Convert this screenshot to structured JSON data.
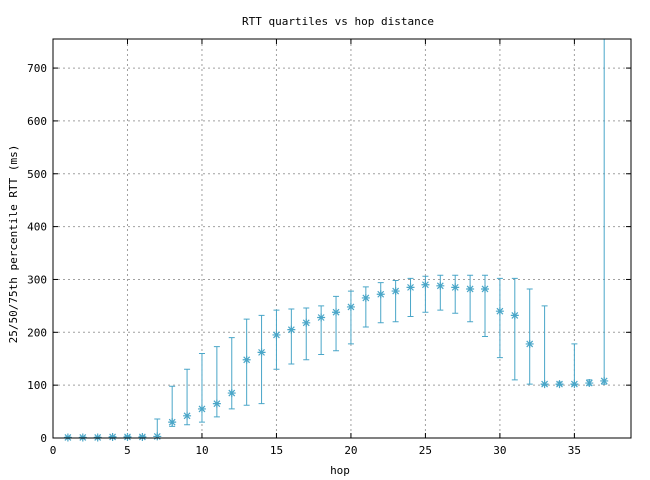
{
  "chart_data": {
    "type": "scatter",
    "title": "RTT quartiles vs hop distance",
    "xlabel": "hop",
    "ylabel": "25/50/75th percentile RTT (ms)",
    "xlim": [
      0,
      38.8
    ],
    "ylim": [
      0,
      755
    ],
    "xticks": [
      0,
      5,
      10,
      15,
      20,
      25,
      30,
      35
    ],
    "yticks": [
      0,
      100,
      200,
      300,
      400,
      500,
      600,
      700
    ],
    "grid": true,
    "colors": {
      "series": "#4aa6c8"
    },
    "points": [
      {
        "x": 1,
        "q25": 0,
        "median": 1,
        "q75": 2
      },
      {
        "x": 2,
        "q25": 0,
        "median": 1,
        "q75": 2
      },
      {
        "x": 3,
        "q25": 0,
        "median": 1,
        "q75": 2
      },
      {
        "x": 4,
        "q25": 0,
        "median": 2,
        "q75": 3
      },
      {
        "x": 5,
        "q25": 0,
        "median": 2,
        "q75": 4
      },
      {
        "x": 6,
        "q25": 0,
        "median": 2,
        "q75": 4
      },
      {
        "x": 7,
        "q25": 0,
        "median": 3,
        "q75": 36
      },
      {
        "x": 8,
        "q25": 22,
        "median": 30,
        "q75": 98
      },
      {
        "x": 9,
        "q25": 25,
        "median": 42,
        "q75": 130
      },
      {
        "x": 10,
        "q25": 30,
        "median": 55,
        "q75": 160
      },
      {
        "x": 11,
        "q25": 40,
        "median": 65,
        "q75": 173
      },
      {
        "x": 12,
        "q25": 55,
        "median": 85,
        "q75": 190
      },
      {
        "x": 13,
        "q25": 62,
        "median": 148,
        "q75": 225
      },
      {
        "x": 14,
        "q25": 65,
        "median": 162,
        "q75": 232
      },
      {
        "x": 15,
        "q25": 130,
        "median": 195,
        "q75": 242
      },
      {
        "x": 16,
        "q25": 140,
        "median": 205,
        "q75": 244
      },
      {
        "x": 17,
        "q25": 148,
        "median": 218,
        "q75": 246
      },
      {
        "x": 18,
        "q25": 158,
        "median": 228,
        "q75": 250
      },
      {
        "x": 19,
        "q25": 165,
        "median": 238,
        "q75": 268
      },
      {
        "x": 20,
        "q25": 178,
        "median": 248,
        "q75": 278
      },
      {
        "x": 21,
        "q25": 210,
        "median": 265,
        "q75": 286
      },
      {
        "x": 22,
        "q25": 218,
        "median": 272,
        "q75": 294
      },
      {
        "x": 23,
        "q25": 220,
        "median": 278,
        "q75": 298
      },
      {
        "x": 24,
        "q25": 230,
        "median": 285,
        "q75": 302
      },
      {
        "x": 25,
        "q25": 238,
        "median": 290,
        "q75": 306
      },
      {
        "x": 26,
        "q25": 242,
        "median": 288,
        "q75": 308
      },
      {
        "x": 27,
        "q25": 236,
        "median": 285,
        "q75": 308
      },
      {
        "x": 28,
        "q25": 220,
        "median": 282,
        "q75": 308
      },
      {
        "x": 29,
        "q25": 192,
        "median": 282,
        "q75": 308
      },
      {
        "x": 30,
        "q25": 152,
        "median": 240,
        "q75": 302
      },
      {
        "x": 31,
        "q25": 110,
        "median": 232,
        "q75": 302
      },
      {
        "x": 32,
        "q25": 102,
        "median": 178,
        "q75": 282
      },
      {
        "x": 33,
        "q25": 100,
        "median": 102,
        "q75": 250
      },
      {
        "x": 34,
        "q25": 100,
        "median": 102,
        "q75": 106
      },
      {
        "x": 35,
        "q25": 100,
        "median": 102,
        "q75": 178
      },
      {
        "x": 36,
        "q25": 100,
        "median": 104,
        "q75": 110
      },
      {
        "x": 37,
        "q25": 102,
        "median": 108,
        "q75": 755
      }
    ]
  }
}
